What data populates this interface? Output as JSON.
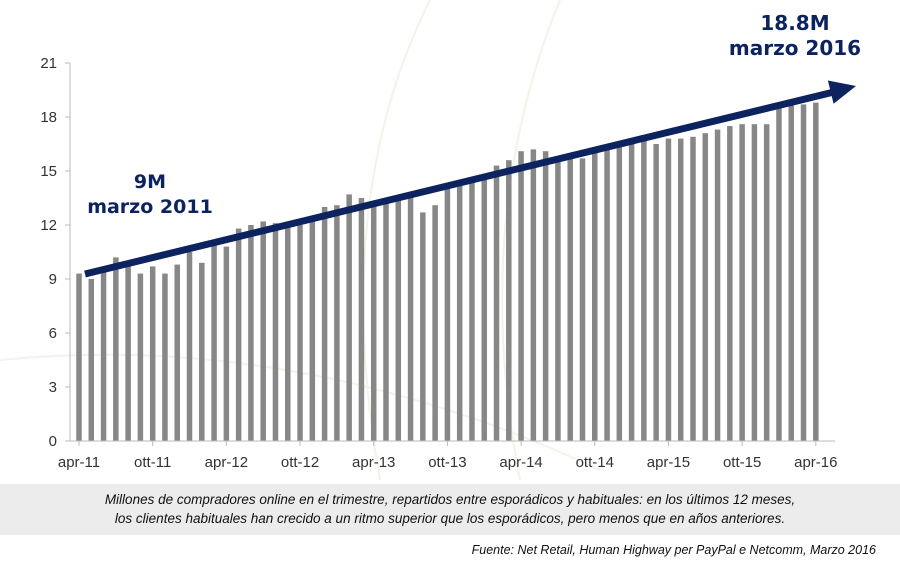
{
  "chart_data": {
    "type": "bar",
    "title": "",
    "xlabel": "",
    "ylabel": "",
    "ylim": [
      0,
      21
    ],
    "yticks": [
      0,
      3,
      6,
      9,
      12,
      15,
      18,
      21
    ],
    "xtick_labels": [
      {
        "label": "apr-11",
        "index": 0
      },
      {
        "label": "ott-11",
        "index": 6
      },
      {
        "label": "apr-12",
        "index": 12
      },
      {
        "label": "ott-12",
        "index": 18
      },
      {
        "label": "apr-13",
        "index": 24
      },
      {
        "label": "ott-13",
        "index": 30
      },
      {
        "label": "apr-14",
        "index": 36
      },
      {
        "label": "ott-14",
        "index": 42
      },
      {
        "label": "apr-15",
        "index": 48
      },
      {
        "label": "ott-15",
        "index": 54
      },
      {
        "label": "apr-16",
        "index": 60
      }
    ],
    "values": [
      9.3,
      9.0,
      9.5,
      10.2,
      9.7,
      9.3,
      9.7,
      9.3,
      9.8,
      10.5,
      9.9,
      10.9,
      10.8,
      11.8,
      12.0,
      12.2,
      12.1,
      11.9,
      12.0,
      12.4,
      13.0,
      13.1,
      13.7,
      13.5,
      13.3,
      13.2,
      13.4,
      13.6,
      12.7,
      13.1,
      14.0,
      14.3,
      14.5,
      14.7,
      15.3,
      15.6,
      16.1,
      16.2,
      16.1,
      15.8,
      15.9,
      15.7,
      16.2,
      16.3,
      16.4,
      16.7,
      17.0,
      16.5,
      16.8,
      16.8,
      16.9,
      17.1,
      17.3,
      17.5,
      17.6,
      17.6,
      17.6,
      18.7,
      18.7,
      18.7,
      18.8
    ],
    "trend": {
      "from": 9,
      "to": 18.8
    },
    "bar_color": "#878787",
    "trend_color": "#0d2360",
    "annotations": {
      "start_value": "9M",
      "start_date": "marzo 2011",
      "end_value": "18.8M",
      "end_date": "marzo 2016"
    }
  },
  "caption": {
    "line1": "Millones de compradores online en el trimestre, repartidos entre esporádicos y habituales: en los últimos 12 meses,",
    "line2": "los clientes habituales han crecido a un ritmo superior que los esporádicos, pero menos que en años anteriores."
  },
  "source": "Fuente: Net Retail, Human Highway per PayPal e Netcomm,  Marzo 2016"
}
